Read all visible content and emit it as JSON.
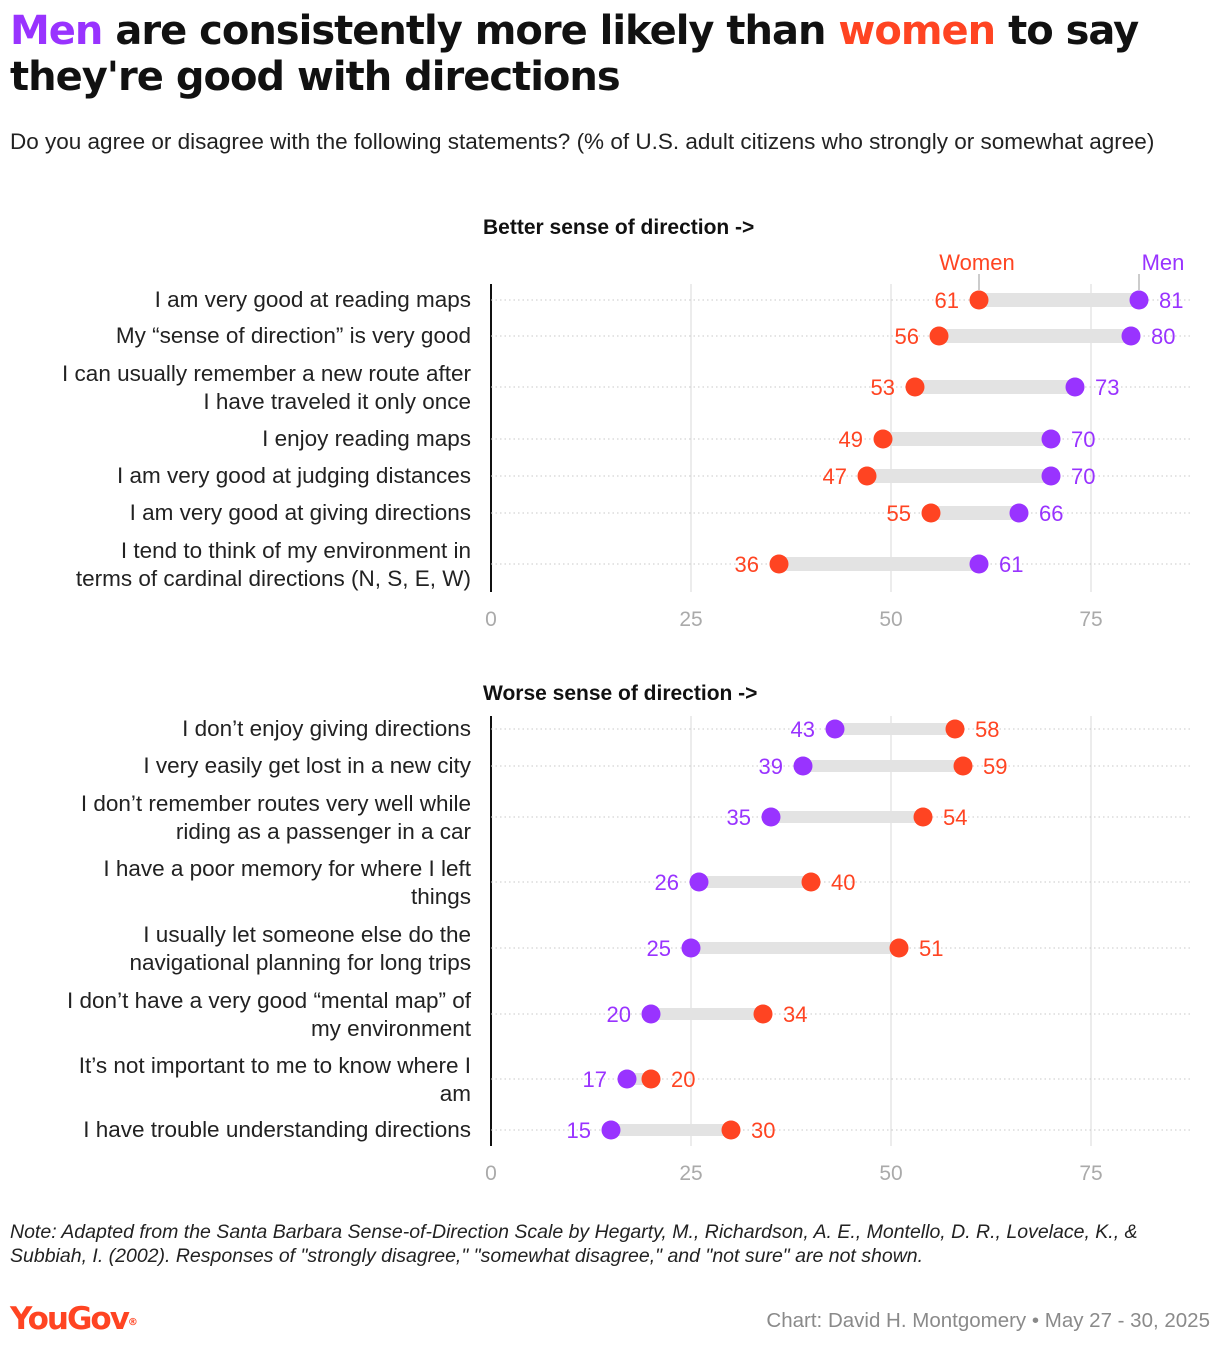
{
  "title": {
    "men": "Men",
    "part1": "are consistently more likely than",
    "women": "women",
    "part2": "to say they're good with directions"
  },
  "subtitle": "Do you agree or disagree with the following statements? (% of U.S. adult citizens who strongly or somewhat agree)",
  "colors": {
    "men": "#9933ff",
    "women": "#ff4422",
    "connector": "#e3e3e3",
    "grid": "#d8d8d8",
    "axis": "#111111",
    "tick_text": "#aaaaaa"
  },
  "chart_data": [
    {
      "type": "dot-plot",
      "title": "Better sense of direction ->",
      "series": [
        "Women",
        "Men"
      ],
      "legend": {
        "women": "Women",
        "men": "Men"
      },
      "xlim": [
        0,
        90
      ],
      "xticks": [
        0,
        25,
        50,
        75
      ],
      "rows": [
        {
          "label": [
            "I am very good at reading maps"
          ],
          "women": 61,
          "men": 81
        },
        {
          "label": [
            "My “sense of direction” is very good"
          ],
          "women": 56,
          "men": 80
        },
        {
          "label": [
            "I can usually remember a new route after",
            "I have traveled it only once"
          ],
          "women": 53,
          "men": 73
        },
        {
          "label": [
            "I enjoy reading maps"
          ],
          "women": 49,
          "men": 70
        },
        {
          "label": [
            "I am very good at judging distances"
          ],
          "women": 47,
          "men": 70
        },
        {
          "label": [
            "I am very good at giving directions"
          ],
          "women": 55,
          "men": 66
        },
        {
          "label": [
            "I tend to think of my environment in",
            "terms of cardinal directions (N, S, E, W)"
          ],
          "women": 36,
          "men": 61
        }
      ]
    },
    {
      "type": "dot-plot",
      "title": "Worse sense of direction ->",
      "series": [
        "Men",
        "Women"
      ],
      "xlim": [
        0,
        90
      ],
      "xticks": [
        0,
        25,
        50,
        75
      ],
      "rows": [
        {
          "label": [
            "I don’t enjoy giving directions"
          ],
          "men": 43,
          "women": 58
        },
        {
          "label": [
            "I very easily get lost in a new city"
          ],
          "men": 39,
          "women": 59
        },
        {
          "label": [
            "I don’t remember routes very well while",
            "riding as a passenger in a car"
          ],
          "men": 35,
          "women": 54
        },
        {
          "label": [
            "I have a poor memory for where I left",
            "things"
          ],
          "men": 26,
          "women": 40
        },
        {
          "label": [
            "I usually let someone else do the",
            "navigational planning for long trips"
          ],
          "men": 25,
          "women": 51
        },
        {
          "label": [
            "I don’t have a very good “mental map” of",
            "my environment"
          ],
          "men": 20,
          "women": 34
        },
        {
          "label": [
            "It’s not important to me to know where I",
            "am"
          ],
          "men": 17,
          "women": 20
        },
        {
          "label": [
            "I have trouble understanding directions"
          ],
          "men": 15,
          "women": 30
        }
      ]
    }
  ],
  "note": "Note: Adapted from the Santa Barbara Sense-of-Direction Scale by Hegarty, M., Richardson, A. E., Montello, D. R., Lovelace, K., & Subbiah, I. (2002). Responses of \"strongly disagree,\" \"somewhat disagree,\" and \"not sure\" are not shown.",
  "logo": {
    "text": "YouGov",
    "mark": "®"
  },
  "credit": "Chart: David H. Montgomery • May 27 - 30, 2025"
}
